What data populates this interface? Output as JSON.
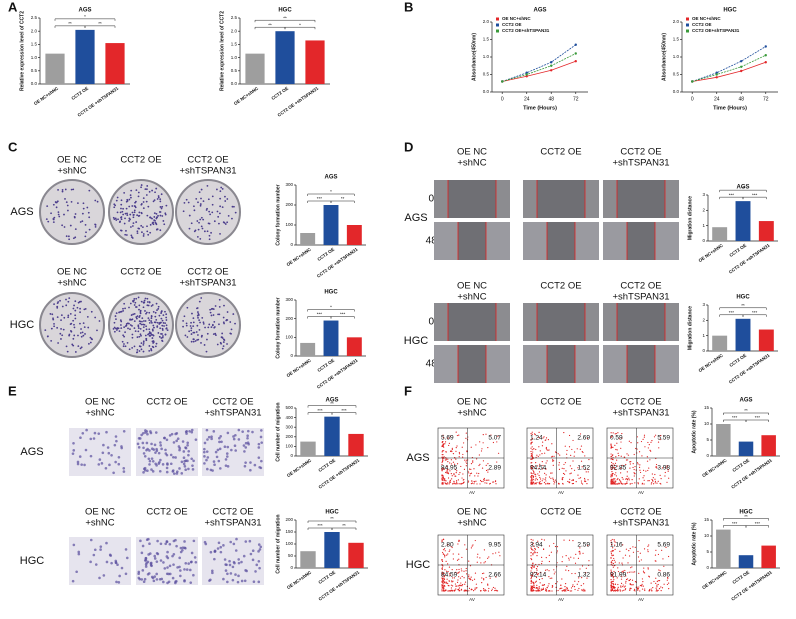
{
  "figure": {
    "panel_labels": [
      "A",
      "B",
      "C",
      "D",
      "E",
      "F"
    ],
    "colony": {
      "columns": [
        [
          "OE NC",
          "+shNC"
        ],
        [
          "CCT2 OE"
        ],
        [
          "CCT2 OE",
          "+shTSPAN31"
        ]
      ],
      "rows": [
        "AGS",
        "HGC"
      ]
    },
    "wound": {
      "columns": [
        [
          "OE NC",
          "+shNC"
        ],
        [
          "CCT2 OE"
        ],
        [
          "CCT2 OE",
          "+shTSPAN31"
        ]
      ],
      "rows": [
        "AGS",
        "HGC"
      ],
      "times": [
        "0h",
        "48h"
      ]
    },
    "transwell": {
      "columns": [
        [
          "OE NC",
          "+shNC"
        ],
        [
          "CCT2 OE"
        ],
        [
          "CCT2 OE",
          "+shTSPAN31"
        ]
      ],
      "rows": [
        "AGS",
        "HGC"
      ]
    },
    "flow": {
      "columns": [
        [
          "OE NC",
          "+shNC"
        ],
        [
          "CCT2 OE"
        ],
        [
          "CCT2 OE",
          "+shTSPAN31"
        ]
      ],
      "rows": [
        "AGS",
        "HGC"
      ],
      "x_label": "AV",
      "quadrants": [
        [
          [
            "5.69",
            "5.07",
            "84.95",
            "2.89"
          ],
          [
            "1.24",
            "2.69",
            "94.54",
            "1.52"
          ],
          [
            "0.59",
            "5.59",
            "92.85",
            "3.98"
          ]
        ],
        [
          [
            "2.80",
            "9.95",
            "84.59",
            "2.66"
          ],
          [
            "3.94",
            "2.59",
            "92.14",
            "1.32"
          ],
          [
            "1.16",
            "5.69",
            "91.99",
            "0.86"
          ]
        ]
      ]
    }
  },
  "chart_data": [
    {
      "type": "bar",
      "title": "AGS",
      "y_label": "Relative expression level of CCT2",
      "categories": [
        "OE NC+shNC",
        "CCT2 OE",
        "CCT2 OE +shTSPAN31"
      ],
      "values": [
        1.15,
        2.05,
        1.55
      ],
      "colors": [
        "#9e9e9e",
        "#1f4e9c",
        "#e3272a"
      ],
      "ylim": [
        0,
        2.5
      ],
      "yticks": [
        {
          "value": 0,
          "label": "0.0"
        },
        {
          "value": 0.5,
          "label": "0.5"
        },
        {
          "value": 1,
          "label": "1.0"
        },
        {
          "value": 1.5,
          "label": "1.5"
        },
        {
          "value": 2,
          "label": "2.0"
        },
        {
          "value": 2.5,
          "label": "2.5"
        }
      ],
      "annotations": [
        "**",
        "**",
        "*"
      ]
    },
    {
      "type": "bar",
      "title": "HGC",
      "y_label": "Relative expression level of CCT2",
      "categories": [
        "OE NC+shNC",
        "CCT2 OE",
        "CCT2 OE +shTSPAN31"
      ],
      "values": [
        1.15,
        2.0,
        1.65
      ],
      "colors": [
        "#9e9e9e",
        "#1f4e9c",
        "#e3272a"
      ],
      "ylim": [
        0,
        2.5
      ],
      "yticks": [
        {
          "value": 0,
          "label": "0.0"
        },
        {
          "value": 0.5,
          "label": "0.5"
        },
        {
          "value": 1,
          "label": "1.0"
        },
        {
          "value": 1.5,
          "label": "1.5"
        },
        {
          "value": 2,
          "label": "2.0"
        },
        {
          "value": 2.5,
          "label": "2.5"
        }
      ],
      "annotations": [
        "**",
        "*",
        "**"
      ]
    },
    {
      "type": "line",
      "title": "AGS",
      "x_label": "Time (Hours)",
      "y_label": "Absorbance(450nm)",
      "x": [
        0,
        24,
        48,
        72
      ],
      "xlim": [
        -10,
        84
      ],
      "xticks": [
        0,
        24,
        48,
        72
      ],
      "ylim": [
        0,
        2
      ],
      "yticks": [
        {
          "value": 0,
          "label": "0.0"
        },
        {
          "value": 0.5,
          "label": "0.5"
        },
        {
          "value": 1,
          "label": "1.0"
        },
        {
          "value": 1.5,
          "label": "1.5"
        },
        {
          "value": 2,
          "label": "2.0"
        }
      ],
      "series": [
        {
          "name": "OE NC+shNC",
          "color": "#e3272a",
          "values": [
            0.3,
            0.45,
            0.62,
            0.88
          ]
        },
        {
          "name": "CCT2 OE",
          "color": "#1f4e9c",
          "values": [
            0.3,
            0.55,
            0.85,
            1.35
          ]
        },
        {
          "name": "CCT2 OE+shTSPAN31",
          "color": "#3a9a3a",
          "values": [
            0.3,
            0.5,
            0.75,
            1.1
          ]
        }
      ]
    },
    {
      "type": "line",
      "title": "HGC",
      "x_label": "Time (Hours)",
      "y_label": "Absorbance(450nm)",
      "x": [
        0,
        24,
        48,
        72
      ],
      "xlim": [
        -10,
        84
      ],
      "xticks": [
        0,
        24,
        48,
        72
      ],
      "ylim": [
        0,
        2
      ],
      "yticks": [
        {
          "value": 0,
          "label": "0.0"
        },
        {
          "value": 0.5,
          "label": "0.5"
        },
        {
          "value": 1,
          "label": "1.0"
        },
        {
          "value": 1.5,
          "label": "1.5"
        },
        {
          "value": 2,
          "label": "2.0"
        }
      ],
      "series": [
        {
          "name": "OE NC+shNC",
          "color": "#e3272a",
          "values": [
            0.3,
            0.42,
            0.6,
            0.85
          ]
        },
        {
          "name": "CCT2 OE",
          "color": "#1f4e9c",
          "values": [
            0.3,
            0.55,
            0.88,
            1.3
          ]
        },
        {
          "name": "CCT2 OE+shTSPAN31",
          "color": "#3a9a3a",
          "values": [
            0.3,
            0.5,
            0.72,
            1.05
          ]
        }
      ]
    },
    {
      "type": "bar",
      "title": "AGS",
      "y_label": "Colony formation number",
      "categories": [
        "OE NC+shNC",
        "CCT2 OE",
        "CCT2 OE +shTSPAN31"
      ],
      "values": [
        60,
        200,
        100
      ],
      "colors": [
        "#9e9e9e",
        "#1f4e9c",
        "#e3272a"
      ],
      "ylim": [
        0,
        300
      ],
      "yticks": [
        0,
        100,
        200,
        300
      ],
      "annotations": [
        "***",
        "**",
        "*"
      ]
    },
    {
      "type": "bar",
      "title": "HGC",
      "y_label": "Colony formation number",
      "categories": [
        "OE NC+shNC",
        "CCT2 OE",
        "CCT2 OE +shTSPAN31"
      ],
      "values": [
        70,
        190,
        100
      ],
      "colors": [
        "#9e9e9e",
        "#1f4e9c",
        "#e3272a"
      ],
      "ylim": [
        0,
        300
      ],
      "yticks": [
        0,
        100,
        200,
        300
      ],
      "annotations": [
        "***",
        "***",
        "*"
      ]
    },
    {
      "type": "bar",
      "title": "AGS",
      "y_label": "Migration distance",
      "categories": [
        "OE NC+shNC",
        "CCT2 OE",
        "CCT2 OE +shTSPAN31"
      ],
      "values": [
        0.9,
        2.6,
        1.3
      ],
      "colors": [
        "#9e9e9e",
        "#1f4e9c",
        "#e3272a"
      ],
      "ylim": [
        0,
        3
      ],
      "yticks": [
        0,
        1,
        2,
        3
      ],
      "annotations": [
        "***",
        "***",
        "**"
      ]
    },
    {
      "type": "bar",
      "title": "HGC",
      "y_label": "Migration distance",
      "categories": [
        "OE NC+shNC",
        "CCT2 OE",
        "CCT2 OE +shTSPAN31"
      ],
      "values": [
        1.0,
        2.1,
        1.4
      ],
      "colors": [
        "#9e9e9e",
        "#1f4e9c",
        "#e3272a"
      ],
      "ylim": [
        0,
        3
      ],
      "yticks": [
        0,
        1,
        2,
        3
      ],
      "annotations": [
        "***",
        "***",
        "**"
      ]
    },
    {
      "type": "bar",
      "title": "AGS",
      "y_label": "Cell number of migration",
      "categories": [
        "OE NC+shNC",
        "CCT2 OE",
        "CCT2 OE +shTSPAN31"
      ],
      "values": [
        150,
        410,
        230
      ],
      "colors": [
        "#9e9e9e",
        "#1f4e9c",
        "#e3272a"
      ],
      "ylim": [
        0,
        500
      ],
      "yticks": [
        0,
        100,
        200,
        300,
        400,
        500
      ],
      "annotations": [
        "***",
        "***",
        "**"
      ]
    },
    {
      "type": "bar",
      "title": "HGC",
      "y_label": "Cell number of migration",
      "categories": [
        "OE NC+shNC",
        "CCT2 OE",
        "CCT2 OE +shTSPAN31"
      ],
      "values": [
        70,
        150,
        105
      ],
      "colors": [
        "#9e9e9e",
        "#1f4e9c",
        "#e3272a"
      ],
      "ylim": [
        0,
        200
      ],
      "yticks": [
        0,
        50,
        100,
        150,
        200
      ],
      "annotations": [
        "***",
        "**",
        "**"
      ]
    },
    {
      "type": "bar",
      "title": "AGS",
      "y_label": "Apoptotic rate (%)",
      "categories": [
        "OE NC+shNC",
        "CCT2 OE",
        "CCT2 OE +shTSPAN31"
      ],
      "values": [
        10,
        4.5,
        6.5
      ],
      "colors": [
        "#9e9e9e",
        "#1f4e9c",
        "#e3272a"
      ],
      "ylim": [
        0,
        15
      ],
      "yticks": [
        0,
        5,
        10,
        15
      ],
      "annotations": [
        "***",
        "***",
        "**"
      ]
    },
    {
      "type": "bar",
      "title": "HGC",
      "y_label": "Apoptotic rate (%)",
      "categories": [
        "OE NC+shNC",
        "CCT2 OE",
        "CCT2 OE +shTSPAN31"
      ],
      "values": [
        12,
        4,
        7
      ],
      "colors": [
        "#9e9e9e",
        "#1f4e9c",
        "#e3272a"
      ],
      "ylim": [
        0,
        15
      ],
      "yticks": [
        0,
        5,
        10,
        15
      ],
      "annotations": [
        "***",
        "***",
        "**"
      ]
    }
  ]
}
